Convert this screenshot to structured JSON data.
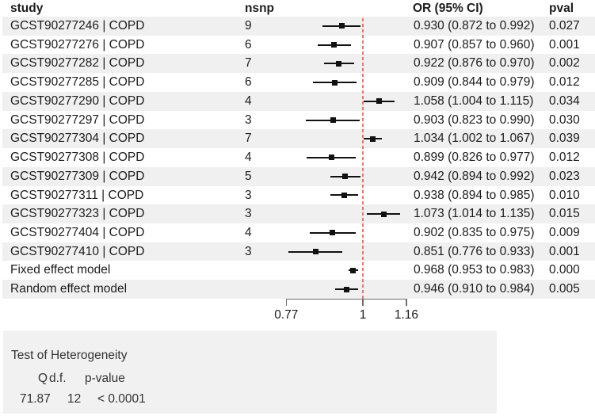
{
  "colors": {
    "stripe": "#f0f0f0",
    "reference_line": "#f2706b",
    "marker": "#111111",
    "ci_line": "#111111",
    "axis": "#6f6f6f",
    "het_box": "#f1f1f1",
    "text": "#1c1c1c"
  },
  "header": {
    "study": "study",
    "nsnp": "nsnp",
    "or_ci": "OR (95% CI)",
    "pval": "pval"
  },
  "chart_data": {
    "type": "forest",
    "scale": "log",
    "columns": [
      "study",
      "nsnp",
      "OR (95% CI)",
      "pval"
    ],
    "rows": [
      {
        "study": "GCST90277246 | COPD",
        "nsnp": "9",
        "or": 0.93,
        "lo": 0.872,
        "hi": 0.992,
        "or_ci": "0.930 (0.872 to 0.992)",
        "pval": "0.027",
        "summary": false
      },
      {
        "study": "GCST90277276 | COPD",
        "nsnp": "6",
        "or": 0.907,
        "lo": 0.857,
        "hi": 0.96,
        "or_ci": "0.907 (0.857 to 0.960)",
        "pval": "0.001",
        "summary": false
      },
      {
        "study": "GCST90277282 | COPD",
        "nsnp": "7",
        "or": 0.922,
        "lo": 0.876,
        "hi": 0.97,
        "or_ci": "0.922 (0.876 to 0.970)",
        "pval": "0.002",
        "summary": false
      },
      {
        "study": "GCST90277285 | COPD",
        "nsnp": "6",
        "or": 0.909,
        "lo": 0.844,
        "hi": 0.979,
        "or_ci": "0.909 (0.844 to 0.979)",
        "pval": "0.012",
        "summary": false
      },
      {
        "study": "GCST90277290 | COPD",
        "nsnp": "4",
        "or": 1.058,
        "lo": 1.004,
        "hi": 1.115,
        "or_ci": "1.058 (1.004 to 1.115)",
        "pval": "0.034",
        "summary": false
      },
      {
        "study": "GCST90277297 | COPD",
        "nsnp": "3",
        "or": 0.903,
        "lo": 0.823,
        "hi": 0.99,
        "or_ci": "0.903 (0.823 to 0.990)",
        "pval": "0.030",
        "summary": false
      },
      {
        "study": "GCST90277304 | COPD",
        "nsnp": "7",
        "or": 1.034,
        "lo": 1.002,
        "hi": 1.067,
        "or_ci": "1.034 (1.002 to 1.067)",
        "pval": "0.039",
        "summary": false
      },
      {
        "study": "GCST90277308 | COPD",
        "nsnp": "4",
        "or": 0.899,
        "lo": 0.826,
        "hi": 0.977,
        "or_ci": "0.899 (0.826 to 0.977)",
        "pval": "0.012",
        "summary": false
      },
      {
        "study": "GCST90277309 | COPD",
        "nsnp": "5",
        "or": 0.942,
        "lo": 0.894,
        "hi": 0.992,
        "or_ci": "0.942 (0.894 to 0.992)",
        "pval": "0.023",
        "summary": false
      },
      {
        "study": "GCST90277311 | COPD",
        "nsnp": "3",
        "or": 0.938,
        "lo": 0.894,
        "hi": 0.985,
        "or_ci": "0.938 (0.894 to 0.985)",
        "pval": "0.010",
        "summary": false
      },
      {
        "study": "GCST90277323 | COPD",
        "nsnp": "3",
        "or": 1.073,
        "lo": 1.014,
        "hi": 1.135,
        "or_ci": "1.073 (1.014 to 1.135)",
        "pval": "0.015",
        "summary": false
      },
      {
        "study": "GCST90277404 | COPD",
        "nsnp": "4",
        "or": 0.902,
        "lo": 0.835,
        "hi": 0.975,
        "or_ci": "0.902 (0.835 to 0.975)",
        "pval": "0.009",
        "summary": false
      },
      {
        "study": "GCST90277410 | COPD",
        "nsnp": "3",
        "or": 0.851,
        "lo": 0.776,
        "hi": 0.933,
        "or_ci": "0.851 (0.776 to 0.933)",
        "pval": "0.001",
        "summary": false
      },
      {
        "study": "Fixed effect model",
        "nsnp": "",
        "or": 0.968,
        "lo": 0.953,
        "hi": 0.983,
        "or_ci": "0.968 (0.953 to 0.983)",
        "pval": "0.000",
        "summary": true
      },
      {
        "study": "Random effect model",
        "nsnp": "",
        "or": 0.946,
        "lo": 0.91,
        "hi": 0.984,
        "or_ci": "0.946 (0.910 to 0.984)",
        "pval": "0.005",
        "summary": true
      }
    ],
    "axis": {
      "ticks": [
        {
          "label": "0.77",
          "value": 0.77
        },
        {
          "label": "1",
          "value": 1
        },
        {
          "label": "1.16",
          "value": 1.16
        }
      ],
      "ref_value": 1
    },
    "xlim": [
      0.77,
      1.16
    ],
    "legend": "none",
    "grid": "row-stripes"
  },
  "heterogeneity": {
    "title": "Test of Heterogeneity",
    "headers": {
      "q": "Q",
      "df": "d.f.",
      "p": "p-value"
    },
    "values": {
      "q": "71.87",
      "df": "12",
      "p": "< 0.0001"
    }
  }
}
